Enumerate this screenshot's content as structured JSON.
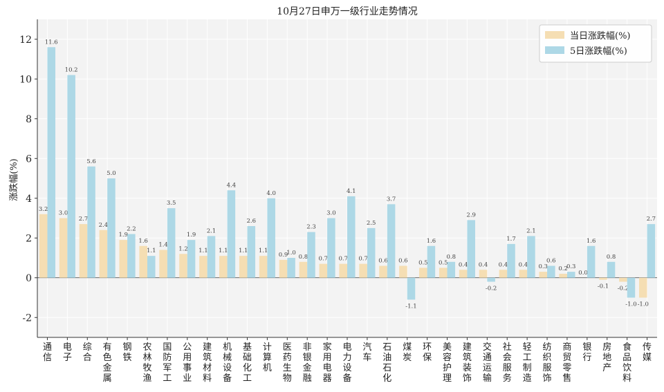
{
  "chart_data": {
    "type": "bar",
    "title": "10月27日申万一级行业走势情况",
    "xlabel": "",
    "ylabel": "涨跌幅(%)",
    "ylim": [
      -3,
      13
    ],
    "yticks": [
      -2,
      0,
      2,
      4,
      6,
      8,
      10,
      12
    ],
    "grid": true,
    "legend_position": "top-right",
    "categories": [
      "通信",
      "电子",
      "综合",
      "有色金属",
      "钢铁",
      "农林牧渔",
      "国防军工",
      "公用事业",
      "建筑材料",
      "机械设备",
      "基础化工",
      "计算机",
      "医药生物",
      "非银金融",
      "家用电器",
      "电力设备",
      "汽车",
      "石油石化",
      "煤炭",
      "环保",
      "美容护理",
      "建筑装饰",
      "交通运输",
      "社会服务",
      "轻工制造",
      "纺织服饰",
      "商贸零售",
      "银行",
      "房地产",
      "食品饮料",
      "传媒"
    ],
    "series": [
      {
        "name": "当日涨跌幅(%)",
        "color": "#f5deb3",
        "values": [
          3.2,
          3.0,
          2.7,
          2.4,
          1.9,
          1.6,
          1.4,
          1.2,
          1.1,
          1.1,
          1.1,
          1.1,
          0.9,
          0.8,
          0.7,
          0.7,
          0.7,
          0.6,
          0.6,
          0.5,
          0.5,
          0.4,
          0.4,
          0.4,
          0.4,
          0.3,
          0.2,
          0.0,
          -0.1,
          -0.2,
          -1.0
        ],
        "labels": [
          "3.2",
          "3.0",
          "2.7",
          "2.4",
          "1.9",
          "1.6",
          "1.4",
          "1.2",
          "1.1",
          "1.1",
          "1.1",
          "1.1",
          "0.9",
          "0.8",
          "0.7",
          "0.7",
          "0.7",
          "0.6",
          "0.6",
          "0.5",
          "0.5",
          "0.4",
          "0.4",
          "0.4",
          "0.4",
          "0.3",
          "0.2",
          "0.0",
          "-0.1",
          "-0.2",
          "-1.0"
        ]
      },
      {
        "name": "5日涨跌幅(%)",
        "color": "#add8e6",
        "values": [
          11.6,
          10.2,
          5.6,
          5.0,
          2.2,
          1.1,
          3.5,
          1.9,
          2.1,
          4.4,
          2.6,
          4.0,
          1.0,
          2.3,
          3.0,
          4.1,
          2.5,
          3.7,
          -1.1,
          1.6,
          0.8,
          2.9,
          -0.2,
          1.7,
          2.1,
          0.6,
          0.3,
          1.6,
          0.8,
          -1.0,
          2.7
        ],
        "labels": [
          "11.6",
          "10.2",
          "5.6",
          "5.0",
          "2.2",
          "1.1",
          "3.5",
          "1.9",
          "2.1",
          "4.4",
          "2.6",
          "4.0",
          "1.0",
          "2.3",
          "3.0",
          "4.1",
          "2.5",
          "3.7",
          "-1.1",
          "1.6",
          "0.8",
          "2.9",
          "-0.2",
          "1.7",
          "2.1",
          "0.6",
          "0.3",
          "1.6",
          "0.8",
          "-1.0",
          "2.7"
        ]
      }
    ]
  }
}
